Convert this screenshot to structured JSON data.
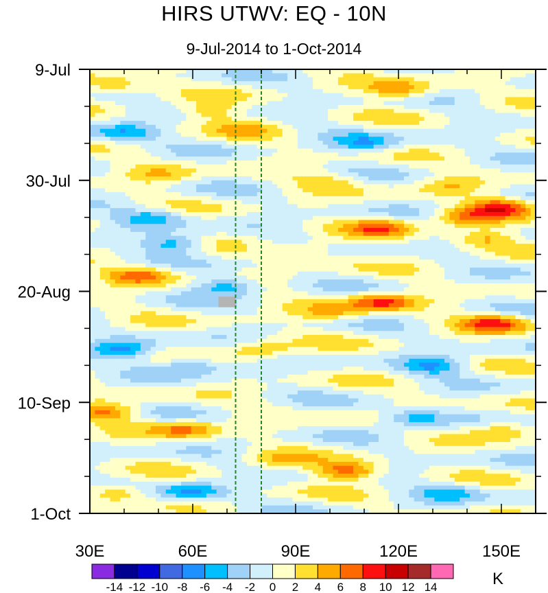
{
  "title": "HIRS UTWV: EQ - 10N",
  "subtitle": "9-Jul-2014 to 1-Oct-2014",
  "units": "K",
  "chart_data": {
    "type": "heatmap",
    "title": "HIRS UTWV: EQ - 10N",
    "subtitle": "9-Jul-2014 to 1-Oct-2014",
    "xlabel": "",
    "ylabel": "",
    "x_range": [
      30,
      160
    ],
    "x_ticks": [
      30,
      60,
      90,
      120,
      150
    ],
    "x_tick_labels": [
      "30E",
      "60E",
      "90E",
      "120E",
      "150E"
    ],
    "y_ticks": [
      "9-Jul",
      "30-Jul",
      "20-Aug",
      "10-Sep",
      "1-Oct"
    ],
    "y_tick_days": [
      0,
      21,
      42,
      63,
      84
    ],
    "y_range_days": [
      0,
      84
    ],
    "reference_lines_lon": [
      72.5,
      80
    ],
    "reference_line_color": "#1f8a1f",
    "colorbar": {
      "levels": [
        -14,
        -12,
        -10,
        -8,
        -6,
        -4,
        -2,
        0,
        2,
        4,
        6,
        8,
        10,
        12,
        14
      ],
      "labels": [
        "-14",
        "-12",
        "-10",
        "-8",
        "-6",
        "-4",
        "-2",
        "0",
        "2",
        "4",
        "6",
        "8",
        "10",
        "12",
        "14"
      ],
      "colors": [
        "#8a2be2",
        "#000090",
        "#0000d0",
        "#4169e1",
        "#1e90ff",
        "#00bfff",
        "#a0d2f8",
        "#d2f0fc",
        "#ffffc8",
        "#ffe030",
        "#ffaa00",
        "#ff6a00",
        "#ff1010",
        "#c80000",
        "#a52a2a",
        "#ff69b4"
      ],
      "units": "K"
    },
    "anomaly_features": [
      {
        "lon": 36,
        "day": 3,
        "value": 5
      },
      {
        "lon": 120,
        "day": 4,
        "value": 6
      },
      {
        "lon": 65,
        "day": 8,
        "value": 4
      },
      {
        "lon": 75,
        "day": 11,
        "value": 3
      },
      {
        "lon": 40,
        "day": 12,
        "value": -6
      },
      {
        "lon": 110,
        "day": 14,
        "value": -5
      },
      {
        "lon": 50,
        "day": 20,
        "value": 3
      },
      {
        "lon": 100,
        "day": 21,
        "value": 3
      },
      {
        "lon": 135,
        "day": 22,
        "value": 3
      },
      {
        "lon": 150,
        "day": 26,
        "value": 8
      },
      {
        "lon": 140,
        "day": 28,
        "value": 6
      },
      {
        "lon": 115,
        "day": 30,
        "value": 6
      },
      {
        "lon": 48,
        "day": 28,
        "value": -5
      },
      {
        "lon": 55,
        "day": 33,
        "value": -6
      },
      {
        "lon": 95,
        "day": 34,
        "value": 3
      },
      {
        "lon": 145,
        "day": 32,
        "value": 5
      },
      {
        "lon": 45,
        "day": 39,
        "value": 7
      },
      {
        "lon": 70,
        "day": 41,
        "value": -6
      },
      {
        "lon": 115,
        "day": 44,
        "value": 8
      },
      {
        "lon": 148,
        "day": 48,
        "value": 8
      },
      {
        "lon": 100,
        "day": 46,
        "value": 4
      },
      {
        "lon": 40,
        "day": 53,
        "value": -6
      },
      {
        "lon": 60,
        "day": 56,
        "value": -5
      },
      {
        "lon": 80,
        "day": 53,
        "value": 4
      },
      {
        "lon": 130,
        "day": 56,
        "value": -6
      },
      {
        "lon": 35,
        "day": 65,
        "value": 6
      },
      {
        "lon": 58,
        "day": 68,
        "value": 6
      },
      {
        "lon": 125,
        "day": 66,
        "value": -6
      },
      {
        "lon": 150,
        "day": 68,
        "value": 5
      },
      {
        "lon": 105,
        "day": 76,
        "value": 8
      },
      {
        "lon": 60,
        "day": 80,
        "value": -6
      },
      {
        "lon": 38,
        "day": 80,
        "value": 5
      },
      {
        "lon": 135,
        "day": 80,
        "value": -4
      },
      {
        "lon": 85,
        "day": 74,
        "value": 3
      }
    ]
  }
}
